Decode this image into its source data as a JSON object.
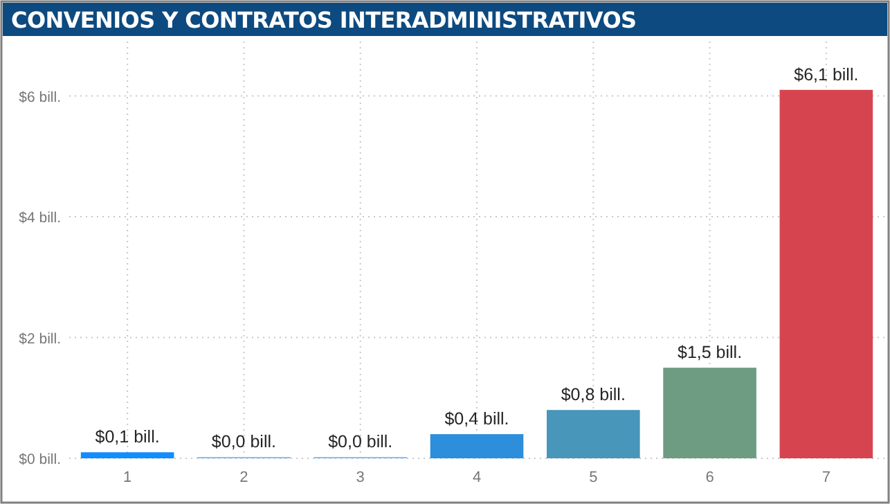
{
  "chart_data": {
    "type": "bar",
    "title": "CONVENIOS Y CONTRATOS INTERADMINISTRATIVOS",
    "categories": [
      "1",
      "2",
      "3",
      "4",
      "5",
      "6",
      "7"
    ],
    "values": [
      0.1,
      0.02,
      0.02,
      0.4,
      0.8,
      1.5,
      6.1
    ],
    "value_labels": [
      "$0,1 bill.",
      "$0,0 bill.",
      "$0,0 bill.",
      "$0,4 bill.",
      "$0,8 bill.",
      "$1,5 bill.",
      "$6,1 bill."
    ],
    "colors": [
      "#118dff",
      "#74b4f7",
      "#74b4f7",
      "#2d8edb",
      "#4896ba",
      "#6d9c82",
      "#d6454f"
    ],
    "ylim": [
      0,
      6.9
    ],
    "yticks": [
      {
        "value": 0,
        "label": "$0 bill."
      },
      {
        "value": 2,
        "label": "$2 bill."
      },
      {
        "value": 4,
        "label": "$4 bill."
      },
      {
        "value": 6,
        "label": "$6 bill."
      }
    ],
    "grid": true
  }
}
